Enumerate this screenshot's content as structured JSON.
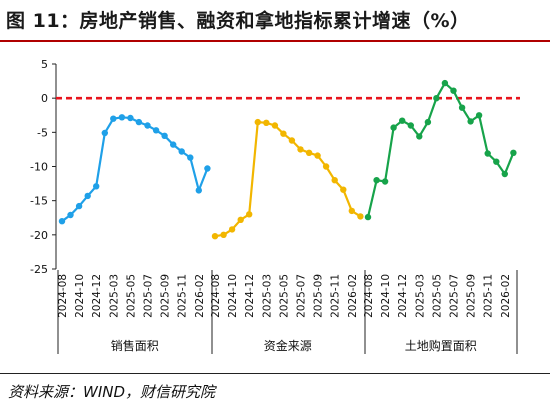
{
  "title": "图 11：房地产销售、融资和拿地指标累计增速（%）",
  "source": "资料来源：WIND，财信研究院",
  "chart_data": {
    "type": "line",
    "title": "图 11：房地产销售、融资和拿地指标累计增速（%）",
    "ylim": [
      -25,
      5
    ],
    "yticks": [
      5,
      0,
      -5,
      -10,
      -15,
      -20,
      -25
    ],
    "grid": false,
    "legend": "none",
    "reference_line": {
      "y": 0,
      "style": "dashed",
      "color": "#e8141d"
    },
    "x_tick_labels": [
      "2024-08",
      "2024-10",
      "2024-12",
      "2025-03",
      "2025-05",
      "2025-07",
      "2025-09",
      "2025-11",
      "2026-02"
    ],
    "series": [
      {
        "name": "销售面积",
        "color": "#1fa0e8",
        "x": [
          "2024-08",
          "2024-09",
          "2024-10",
          "2024-11",
          "2024-12",
          "2025-02",
          "2025-03",
          "2025-04",
          "2025-05",
          "2025-06",
          "2025-07",
          "2025-08",
          "2025-09",
          "2025-10",
          "2025-11",
          "2025-12",
          "2026-02",
          "2026-03"
        ],
        "values": [
          -18.0,
          -17.1,
          -15.8,
          -14.3,
          -12.9,
          -5.1,
          -3.0,
          -2.8,
          -2.9,
          -3.5,
          -4.0,
          -4.7,
          -5.5,
          -6.8,
          -7.8,
          -8.7,
          -13.5,
          -10.3
        ]
      },
      {
        "name": "资金来源",
        "color": "#f2b600",
        "x": [
          "2024-08",
          "2024-09",
          "2024-10",
          "2024-11",
          "2024-12",
          "2025-02",
          "2025-03",
          "2025-04",
          "2025-05",
          "2025-06",
          "2025-07",
          "2025-08",
          "2025-09",
          "2025-10",
          "2025-11",
          "2025-12",
          "2026-02",
          "2026-03"
        ],
        "values": [
          -20.2,
          -20.0,
          -19.2,
          -17.8,
          -17.0,
          -3.5,
          -3.6,
          -4.0,
          -5.2,
          -6.2,
          -7.5,
          -8.0,
          -8.4,
          -10.0,
          -12.0,
          -13.4,
          -16.5,
          -17.3
        ]
      },
      {
        "name": "土地购置面积",
        "color": "#17a34a",
        "x": [
          "2024-08",
          "2024-09",
          "2024-10",
          "2024-11",
          "2024-12",
          "2025-02",
          "2025-03",
          "2025-04",
          "2025-05",
          "2025-06",
          "2025-07",
          "2025-08",
          "2025-09",
          "2025-10",
          "2025-11",
          "2025-12",
          "2026-02",
          "2026-03"
        ],
        "values": [
          -17.4,
          -12.0,
          -12.2,
          -4.3,
          -3.3,
          -4.0,
          -5.6,
          -3.5,
          0.0,
          2.2,
          1.1,
          -1.4,
          -3.4,
          -2.5,
          -8.1,
          -9.3,
          -11.1,
          -8.0
        ]
      }
    ]
  }
}
